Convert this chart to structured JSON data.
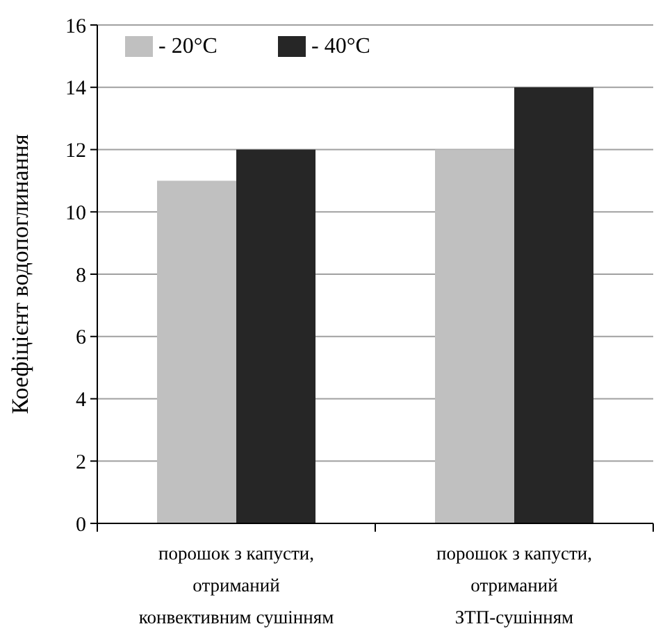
{
  "chart_data": {
    "type": "bar",
    "ylabel": "Коефіцієнт водопоглинання",
    "categories": [
      "порошок з капусти, отриманий конвективним сушінням",
      "порошок з капусти, отриманий ЗТП-сушінням"
    ],
    "series": [
      {
        "name": "- 20°C",
        "color": "#c0c0c0",
        "values": [
          11,
          12
        ]
      },
      {
        "name": "- 40°C",
        "color": "#262626",
        "values": [
          12,
          14
        ]
      }
    ],
    "ylim": [
      0,
      16
    ],
    "yticks": [
      0,
      2,
      4,
      6,
      8,
      10,
      12,
      14,
      16
    ],
    "grid": "y",
    "legend": "top left"
  }
}
